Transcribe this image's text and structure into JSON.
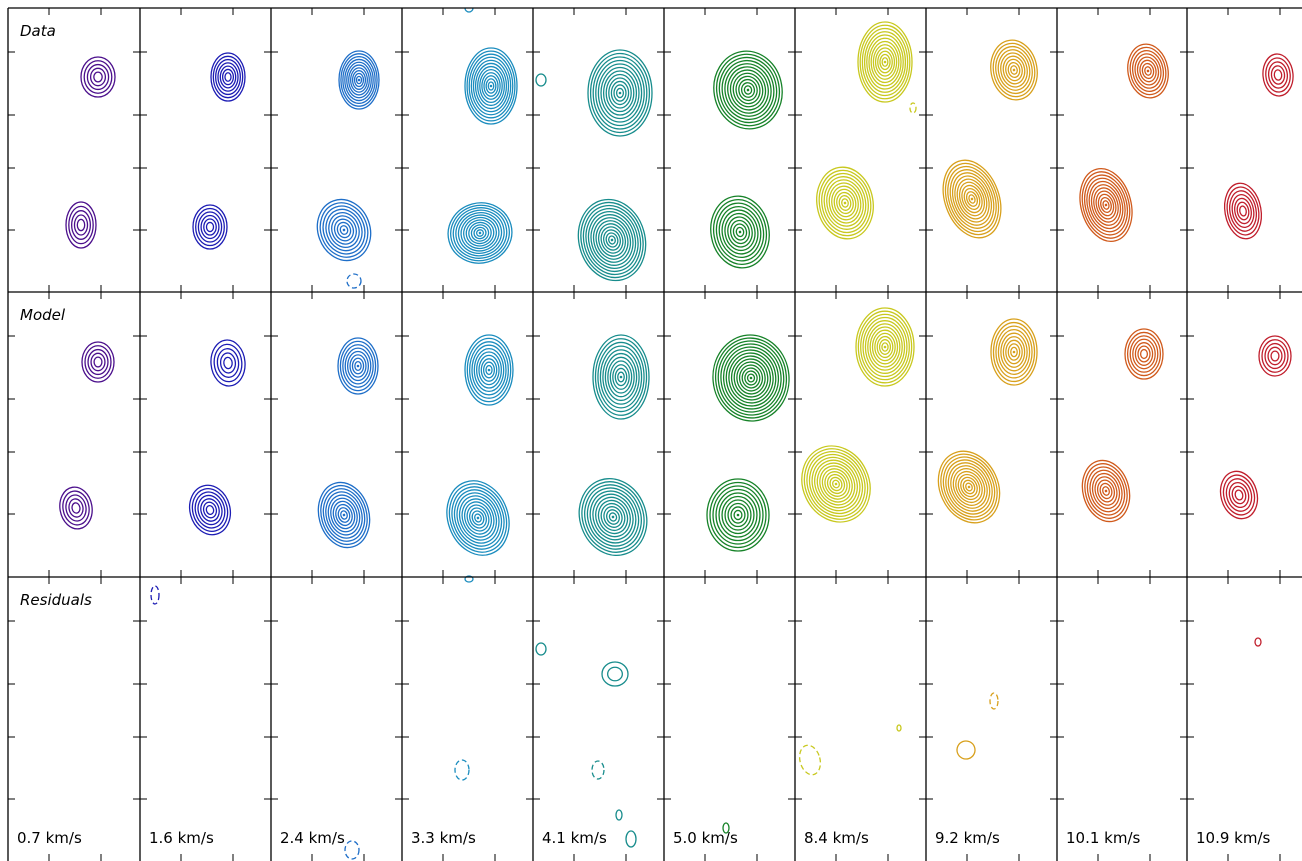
{
  "chart_data": {
    "type": "contour-channel-maps",
    "row_labels": [
      "Data",
      "Model",
      "Residuals"
    ],
    "channels": [
      {
        "velocity": "0.7 km/s",
        "color": "#4b0f8c"
      },
      {
        "velocity": "1.6 km/s",
        "color": "#1c1cb4"
      },
      {
        "velocity": "2.4 km/s",
        "color": "#1e6ec8"
      },
      {
        "velocity": "3.3 km/s",
        "color": "#1a8cbe"
      },
      {
        "velocity": "4.1 km/s",
        "color": "#178c8c"
      },
      {
        "velocity": "5.0 km/s",
        "color": "#168228"
      },
      {
        "velocity": "8.4 km/s",
        "color": "#c8c81e"
      },
      {
        "velocity": "9.2 km/s",
        "color": "#d8a01c"
      },
      {
        "velocity": "10.1 km/s",
        "color": "#d05a1c"
      },
      {
        "velocity": "10.9 km/s",
        "color": "#c01e2c"
      }
    ],
    "grid": false,
    "legend": "none"
  }
}
